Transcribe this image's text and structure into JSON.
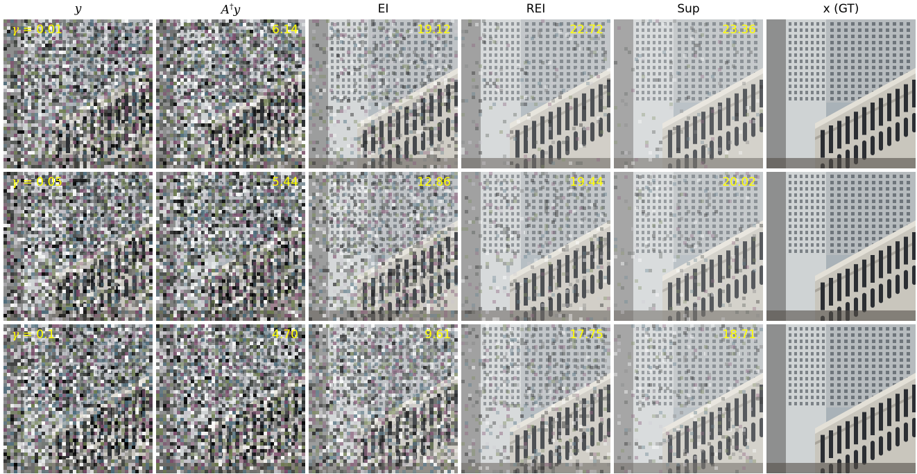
{
  "columns": [
    {
      "title": "y",
      "math": true
    },
    {
      "title": "A",
      "sup": "†",
      "title2": "y",
      "math": true
    },
    {
      "title": "EI",
      "math": false
    },
    {
      "title": "REI",
      "math": false
    },
    {
      "title": "Sup",
      "math": false
    },
    {
      "title": "x (GT)",
      "math": false
    }
  ],
  "rows": [
    {
      "gamma_symbol": "γ",
      "gamma_value": "= 0.01",
      "psnr": [
        "6.14",
        "19.12",
        "22.72",
        "23.36"
      ]
    },
    {
      "gamma_symbol": "γ",
      "gamma_value": "= 0.05",
      "psnr": [
        "5.44",
        "12.86",
        "19.44",
        "20.02"
      ]
    },
    {
      "gamma_symbol": "γ",
      "gamma_value": "= 0.1",
      "psnr": [
        "4.70",
        "9.61",
        "17.75",
        "18.71"
      ]
    }
  ],
  "noise_level": [
    [
      0.95,
      0.95,
      0.35,
      0.12,
      0.08,
      0.0
    ],
    [
      0.97,
      0.97,
      0.6,
      0.2,
      0.12,
      0.0
    ],
    [
      1.0,
      1.0,
      0.85,
      0.3,
      0.2,
      0.0
    ]
  ],
  "colors": {
    "psnr_text": "#ffff00",
    "sky": "#a9b2b8",
    "stone": "#c9c6bd",
    "window": "#2b2e33"
  },
  "scene_icon": "building-facade-image"
}
